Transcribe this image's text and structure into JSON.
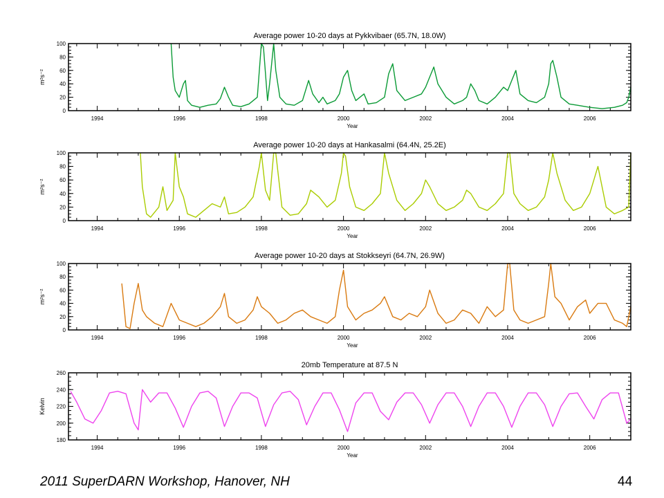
{
  "slide": {
    "footer": "2011 SuperDARN Workshop, Hanover, NH",
    "page_number": "44"
  },
  "chart_data": [
    {
      "type": "line",
      "title": "Average power 10-20 days at Pykkvibaer (65.7N, 18.0W)",
      "xlabel": "Year",
      "ylabel": "m²s⁻²",
      "xlim": [
        1993.3,
        2007.0
      ],
      "ylim": [
        0,
        100
      ],
      "x_ticks": [
        "1994",
        "1996",
        "1998",
        "2000",
        "2002",
        "2004",
        "2006"
      ],
      "y_ticks": [
        "0",
        "20",
        "40",
        "60",
        "80",
        "100"
      ],
      "color": "#0a9a35",
      "series": [
        {
          "x": [
            1995.8,
            1995.85,
            1995.9,
            1996.0,
            1996.1,
            1996.15,
            1996.2,
            1996.3,
            1996.5,
            1996.7,
            1996.9,
            1997.0,
            1997.1,
            1997.2,
            1997.3,
            1997.5,
            1997.7,
            1997.9,
            1998.0,
            1998.05,
            1998.15,
            1998.2,
            1998.3,
            1998.35,
            1998.45,
            1998.6,
            1998.8,
            1999.0,
            1999.15,
            1999.25,
            1999.4,
            1999.5,
            1999.6,
            1999.8,
            1999.9,
            2000.0,
            2000.1,
            2000.2,
            2000.3,
            2000.5,
            2000.6,
            2000.8,
            2001.0,
            2001.1,
            2001.2,
            2001.3,
            2001.5,
            2001.7,
            2001.9,
            2002.0,
            2002.1,
            2002.2,
            2002.3,
            2002.5,
            2002.7,
            2002.9,
            2003.0,
            2003.1,
            2003.2,
            2003.3,
            2003.5,
            2003.7,
            2003.9,
            2004.0,
            2004.1,
            2004.2,
            2004.3,
            2004.5,
            2004.7,
            2004.9,
            2005.0,
            2005.05,
            2005.1,
            2005.2,
            2005.3,
            2005.5,
            2005.7,
            2006.0,
            2006.3,
            2006.6,
            2006.8,
            2006.9,
            2006.95,
            2007.0
          ],
          "y": [
            100,
            50,
            30,
            20,
            40,
            45,
            15,
            8,
            5,
            8,
            10,
            18,
            35,
            20,
            8,
            6,
            10,
            20,
            100,
            95,
            15,
            40,
            100,
            60,
            20,
            10,
            8,
            15,
            45,
            25,
            12,
            20,
            10,
            15,
            25,
            50,
            60,
            30,
            15,
            25,
            10,
            12,
            20,
            55,
            70,
            30,
            15,
            20,
            25,
            35,
            50,
            65,
            40,
            20,
            10,
            15,
            20,
            40,
            30,
            15,
            10,
            20,
            35,
            30,
            45,
            60,
            25,
            15,
            12,
            20,
            40,
            70,
            75,
            50,
            20,
            10,
            8,
            5,
            3,
            5,
            8,
            12,
            20,
            35
          ]
        }
      ]
    },
    {
      "type": "line",
      "title": "Average power 10-20 days at Hankasalmi (64.4N, 25.2E)",
      "xlabel": "Year",
      "ylabel": "m²s⁻²",
      "xlim": [
        1993.3,
        2007.0
      ],
      "ylim": [
        0,
        100
      ],
      "x_ticks": [
        "1994",
        "1996",
        "1998",
        "2000",
        "2002",
        "2004",
        "2006"
      ],
      "y_ticks": [
        "0",
        "20",
        "40",
        "60",
        "80",
        "100"
      ],
      "color": "#aacc00",
      "series": [
        {
          "x": [
            1995.05,
            1995.1,
            1995.2,
            1995.3,
            1995.5,
            1995.6,
            1995.7,
            1995.85,
            1995.9,
            1996.0,
            1996.1,
            1996.2,
            1996.4,
            1996.6,
            1996.8,
            1997.0,
            1997.1,
            1997.2,
            1997.4,
            1997.6,
            1997.8,
            1997.95,
            1998.0,
            1998.1,
            1998.2,
            1998.3,
            1998.35,
            1998.5,
            1998.7,
            1998.9,
            1999.1,
            1999.2,
            1999.4,
            1999.6,
            1999.8,
            1999.95,
            2000.0,
            2000.05,
            2000.15,
            2000.3,
            2000.5,
            2000.7,
            2000.9,
            2001.0,
            2001.1,
            2001.3,
            2001.5,
            2001.7,
            2001.9,
            2002.0,
            2002.1,
            2002.3,
            2002.5,
            2002.7,
            2002.9,
            2003.0,
            2003.1,
            2003.3,
            2003.5,
            2003.7,
            2003.9,
            2004.0,
            2004.05,
            2004.15,
            2004.3,
            2004.5,
            2004.7,
            2004.9,
            2005.0,
            2005.1,
            2005.2,
            2005.4,
            2005.6,
            2005.8,
            2006.0,
            2006.1,
            2006.2,
            2006.4,
            2006.6,
            2006.8,
            2006.95,
            2007.0
          ],
          "y": [
            100,
            50,
            10,
            5,
            20,
            50,
            15,
            30,
            100,
            50,
            35,
            10,
            5,
            15,
            25,
            20,
            35,
            10,
            12,
            20,
            35,
            80,
            100,
            45,
            30,
            100,
            100,
            20,
            8,
            10,
            25,
            45,
            35,
            20,
            30,
            70,
            100,
            95,
            50,
            20,
            15,
            25,
            40,
            100,
            70,
            30,
            15,
            25,
            40,
            60,
            50,
            25,
            15,
            20,
            30,
            45,
            40,
            20,
            15,
            25,
            40,
            100,
            100,
            40,
            25,
            15,
            20,
            35,
            60,
            100,
            70,
            30,
            15,
            20,
            40,
            60,
            80,
            20,
            10,
            15,
            20,
            100
          ]
        }
      ]
    },
    {
      "type": "line",
      "title": "Average power 10-20 days at Stokkseyri (64.7N, 26.9W)",
      "xlabel": "Year",
      "ylabel": "m²s⁻²",
      "xlim": [
        1993.3,
        2007.0
      ],
      "ylim": [
        0,
        100
      ],
      "x_ticks": [
        "1994",
        "1996",
        "1998",
        "2000",
        "2002",
        "2004",
        "2006"
      ],
      "y_ticks": [
        "0",
        "20",
        "40",
        "60",
        "80",
        "100"
      ],
      "color": "#d97a10",
      "series": [
        {
          "x": [
            1994.6,
            1994.7,
            1994.8,
            1994.9,
            1995.0,
            1995.1,
            1995.2,
            1995.4,
            1995.6,
            1995.8,
            1996.0,
            1996.2,
            1996.4,
            1996.6,
            1996.8,
            1997.0,
            1997.1,
            1997.2,
            1997.4,
            1997.6,
            1997.8,
            1997.9,
            1998.0,
            1998.2,
            1998.4,
            1998.6,
            1998.8,
            1999.0,
            1999.2,
            1999.4,
            1999.6,
            1999.8,
            1999.9,
            2000.0,
            2000.1,
            2000.3,
            2000.5,
            2000.7,
            2000.9,
            2001.0,
            2001.2,
            2001.4,
            2001.6,
            2001.8,
            2002.0,
            2002.1,
            2002.3,
            2002.5,
            2002.7,
            2002.9,
            2003.1,
            2003.3,
            2003.5,
            2003.7,
            2003.9,
            2004.0,
            2004.05,
            2004.15,
            2004.3,
            2004.5,
            2004.7,
            2004.9,
            2005.0,
            2005.05,
            2005.15,
            2005.3,
            2005.5,
            2005.7,
            2005.9,
            2006.0,
            2006.2,
            2006.4,
            2006.6,
            2006.8,
            2006.9,
            2007.0
          ],
          "y": [
            70,
            5,
            2,
            40,
            70,
            30,
            20,
            10,
            5,
            40,
            15,
            10,
            5,
            10,
            20,
            35,
            55,
            20,
            10,
            15,
            30,
            50,
            35,
            25,
            10,
            15,
            25,
            30,
            20,
            15,
            10,
            20,
            60,
            90,
            35,
            15,
            25,
            30,
            40,
            50,
            20,
            15,
            25,
            20,
            35,
            60,
            25,
            10,
            15,
            30,
            25,
            10,
            35,
            20,
            30,
            100,
            100,
            30,
            15,
            10,
            15,
            20,
            70,
            100,
            50,
            40,
            15,
            35,
            45,
            25,
            40,
            40,
            15,
            10,
            5,
            35
          ]
        }
      ]
    },
    {
      "type": "line",
      "title": "20mb Temperature at 87.5 N",
      "xlabel": "Year",
      "ylabel": "Kelvin",
      "xlim": [
        1993.3,
        2007.0
      ],
      "ylim": [
        180,
        260
      ],
      "x_ticks": [
        "1994",
        "1996",
        "1998",
        "2000",
        "2002",
        "2004",
        "2006"
      ],
      "y_ticks": [
        "180",
        "200",
        "220",
        "240",
        "260"
      ],
      "color": "#ee44ee",
      "series": [
        {
          "x": [
            1993.35,
            1993.5,
            1993.7,
            1993.9,
            1994.1,
            1994.3,
            1994.5,
            1994.7,
            1994.9,
            1995.0,
            1995.1,
            1995.3,
            1995.5,
            1995.7,
            1995.9,
            1996.1,
            1996.3,
            1996.5,
            1996.7,
            1996.9,
            1997.1,
            1997.3,
            1997.5,
            1997.7,
            1997.9,
            1998.1,
            1998.3,
            1998.5,
            1998.7,
            1998.9,
            1999.1,
            1999.3,
            1999.5,
            1999.7,
            1999.9,
            2000.1,
            2000.3,
            2000.5,
            2000.7,
            2000.9,
            2001.1,
            2001.3,
            2001.5,
            2001.7,
            2001.9,
            2002.1,
            2002.3,
            2002.5,
            2002.7,
            2002.9,
            2003.1,
            2003.3,
            2003.5,
            2003.7,
            2003.9,
            2004.1,
            2004.3,
            2004.5,
            2004.7,
            2004.9,
            2005.1,
            2005.3,
            2005.5,
            2005.7,
            2005.9,
            2006.1,
            2006.3,
            2006.5,
            2006.7,
            2006.9,
            2007.0
          ],
          "y": [
            238,
            225,
            205,
            200,
            215,
            236,
            238,
            235,
            200,
            192,
            240,
            225,
            236,
            236,
            218,
            195,
            220,
            236,
            238,
            230,
            196,
            220,
            236,
            236,
            230,
            196,
            222,
            236,
            238,
            228,
            198,
            220,
            236,
            236,
            216,
            190,
            224,
            236,
            236,
            214,
            204,
            225,
            236,
            236,
            222,
            200,
            222,
            236,
            236,
            220,
            196,
            220,
            236,
            236,
            220,
            195,
            220,
            236,
            236,
            222,
            196,
            220,
            235,
            236,
            220,
            205,
            228,
            236,
            236,
            200,
            205
          ]
        }
      ]
    }
  ]
}
